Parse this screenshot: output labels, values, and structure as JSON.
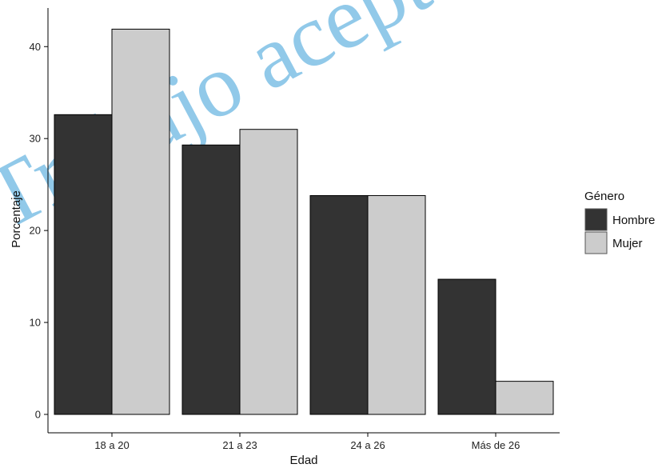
{
  "chart_data": {
    "type": "bar",
    "title": "",
    "xlabel": "Edad",
    "ylabel": "Porcentaje",
    "categories": [
      "18 a 20",
      "21 a 23",
      "24 a 26",
      "Más de 26"
    ],
    "series": [
      {
        "name": "Hombre",
        "values": [
          32.6,
          29.3,
          23.8,
          14.7
        ],
        "color": "#333333"
      },
      {
        "name": "Mujer",
        "values": [
          41.9,
          31.0,
          23.8,
          3.6
        ],
        "color": "#cccccc"
      }
    ],
    "ylim": [
      0,
      44.2
    ],
    "yticks": [
      0,
      10,
      20,
      30,
      40
    ],
    "grid": false,
    "legend": {
      "title": "Género",
      "placement": "right"
    }
  },
  "watermark": {
    "text": "Trabajo aceptado"
  }
}
